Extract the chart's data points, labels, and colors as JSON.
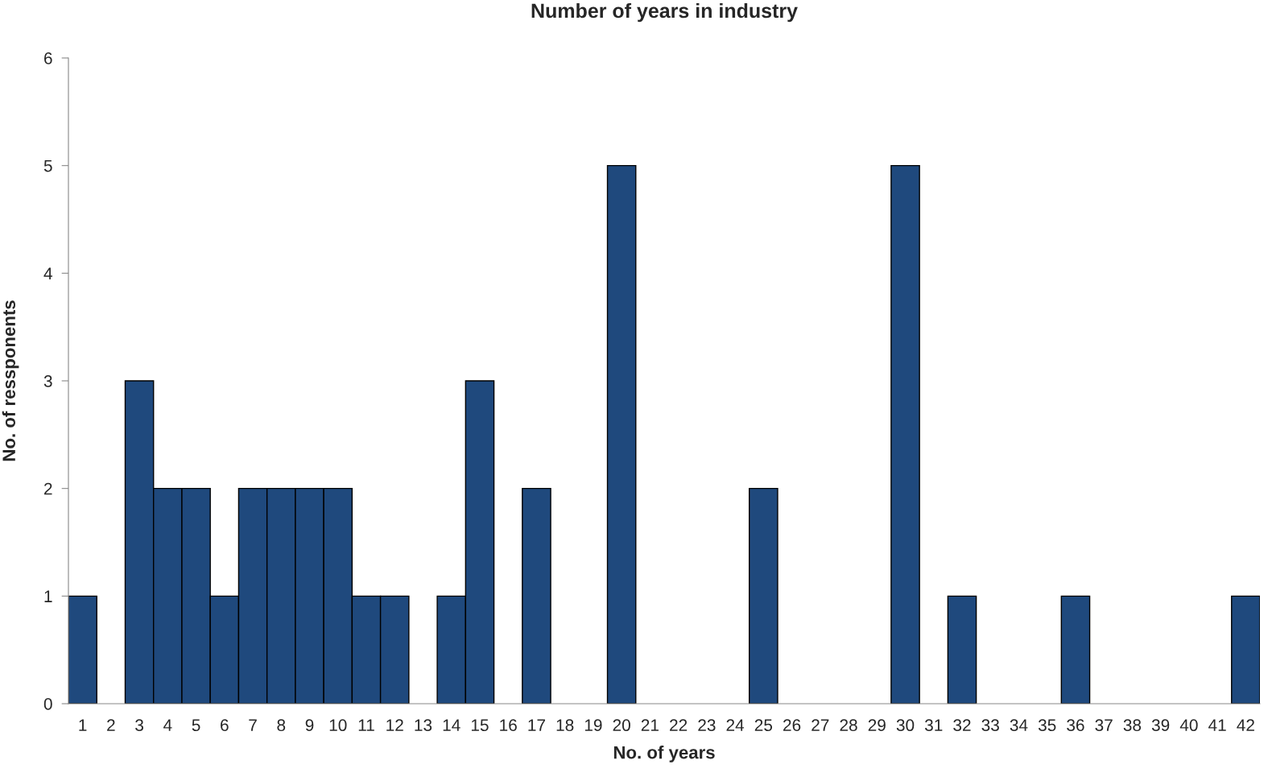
{
  "chart_data": {
    "type": "bar",
    "title": "Number of years in industry",
    "xlabel": "No. of years",
    "ylabel": "No. of ressponents",
    "categories": [
      "1",
      "2",
      "3",
      "4",
      "5",
      "6",
      "7",
      "8",
      "9",
      "10",
      "11",
      "12",
      "13",
      "14",
      "15",
      "16",
      "17",
      "18",
      "19",
      "20",
      "21",
      "22",
      "23",
      "24",
      "25",
      "26",
      "27",
      "28",
      "29",
      "30",
      "31",
      "32",
      "33",
      "34",
      "35",
      "36",
      "37",
      "38",
      "39",
      "40",
      "41",
      "42"
    ],
    "values": [
      1,
      0,
      3,
      2,
      2,
      1,
      2,
      2,
      2,
      2,
      1,
      1,
      0,
      1,
      3,
      0,
      2,
      0,
      0,
      5,
      0,
      0,
      0,
      0,
      2,
      0,
      0,
      0,
      0,
      5,
      0,
      1,
      0,
      0,
      0,
      1,
      0,
      0,
      0,
      0,
      0,
      1
    ],
    "color": "#1f497d",
    "ylim": [
      0,
      6
    ],
    "yticks": [
      0,
      1,
      2,
      3,
      4,
      5,
      6
    ],
    "grid": false,
    "legend": false
  }
}
